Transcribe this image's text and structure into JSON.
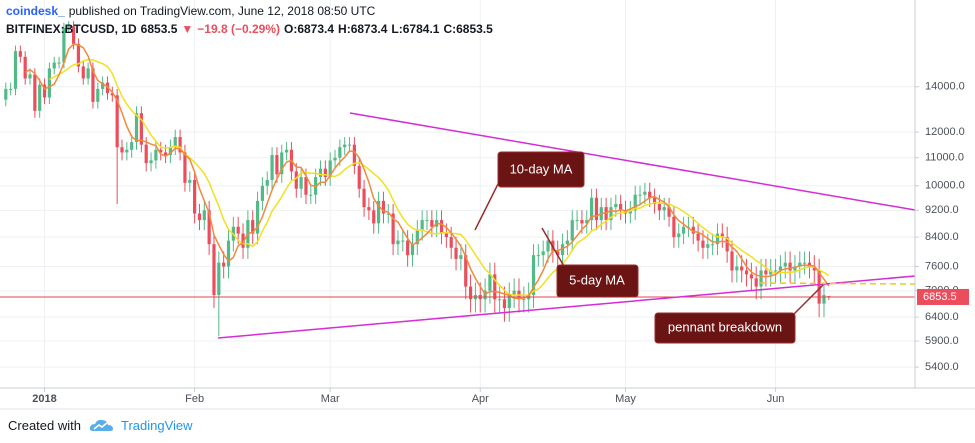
{
  "header": {
    "publisher": "coindesk_",
    "published": "published on TradingView.com, June 12, 2018 08:50 UTC",
    "symbol": "BITFINEX:BTCUSD, 1D",
    "last": "6853.5",
    "arrow": "▼",
    "change": "−19.8 (−0.29%)",
    "o": "O:6873.4",
    "h": "H:6873.4",
    "l": "L:6784.1",
    "c": "C:6853.5"
  },
  "chart_data": {
    "type": "candlestick",
    "open": [
      13400,
      13900,
      13900,
      15800,
      15500,
      14400,
      14600,
      12900,
      14100,
      13500,
      14900,
      15200,
      15200,
      17100,
      17200,
      16200,
      15000,
      14400,
      14900,
      13300,
      13900,
      14200,
      13700,
      13600,
      11400,
      11200,
      11300,
      11600,
      12800,
      11500,
      10800,
      10900,
      11300,
      11200,
      11100,
      11400,
      11800,
      11200,
      10100,
      10200,
      9100,
      8900,
      9200,
      8200,
      6900,
      7700,
      7600,
      8300,
      8700,
      8500,
      8100,
      8900,
      8500,
      9500,
      10000,
      10200,
      11100,
      10400,
      11200,
      11300,
      10500,
      9900,
      10300,
      9700,
      9700,
      10300,
      10600,
      10300,
      10900,
      11000,
      11400,
      11500,
      11500,
      10700,
      9900,
      9300,
      9200,
      8800,
      9500,
      9100,
      9100,
      8200,
      8300,
      8300,
      7900,
      8200,
      8600,
      8900,
      8900,
      8700,
      8900,
      8500,
      8400,
      8100,
      7800,
      7900,
      7100,
      6800,
      6900,
      6800,
      7000,
      7400,
      6800,
      6800,
      6600,
      6900,
      7000,
      6800,
      6800,
      6900,
      7900,
      7900,
      8000,
      8300,
      8000,
      7900,
      8200,
      8300,
      8900,
      8900,
      8800,
      8900,
      9600,
      8900,
      9300,
      8900,
      9300,
      9400,
      9200,
      9100,
      9200,
      9700,
      9700,
      9800,
      9600,
      9400,
      9200,
      9300,
      9000,
      8400,
      8500,
      8700,
      8700,
      8500,
      8300,
      8100,
      8200,
      8200,
      8500,
      8400,
      8000,
      7500,
      7600,
      7500,
      7400,
      7300,
      7100,
      7500,
      7400,
      7500,
      7500,
      7600,
      7700,
      7500,
      7600,
      7700,
      7700,
      7600,
      7500,
      6700,
      6873.4
    ],
    "high": [
      14200,
      14200,
      16100,
      16100,
      15800,
      14900,
      14900,
      14400,
      14400,
      15200,
      15500,
      15500,
      17400,
      17500,
      17500,
      16500,
      15300,
      15200,
      15200,
      14200,
      14500,
      14500,
      14000,
      13900,
      11700,
      11600,
      11900,
      13100,
      13100,
      11800,
      11200,
      11600,
      11600,
      11500,
      11700,
      12100,
      12100,
      11500,
      10500,
      10500,
      9400,
      9500,
      9500,
      8500,
      8000,
      8000,
      8600,
      9000,
      9000,
      8800,
      9200,
      9200,
      9800,
      10300,
      10500,
      11400,
      11400,
      11500,
      11600,
      11600,
      10800,
      10600,
      10600,
      10000,
      10600,
      10900,
      10900,
      11200,
      11300,
      11700,
      11800,
      11800,
      11800,
      11000,
      10200,
      9600,
      9500,
      9800,
      9800,
      9400,
      9400,
      8600,
      8600,
      8600,
      8500,
      8900,
      9200,
      9200,
      9200,
      9200,
      9200,
      8800,
      8700,
      8400,
      8200,
      8200,
      7400,
      7200,
      7200,
      7300,
      7700,
      7700,
      7100,
      7100,
      7200,
      7300,
      7300,
      7100,
      7200,
      8200,
      8200,
      8300,
      8600,
      8600,
      8300,
      8500,
      8600,
      9200,
      9200,
      9200,
      9200,
      9900,
      9900,
      9600,
      9600,
      9600,
      9700,
      9700,
      9500,
      9500,
      10000,
      10000,
      10100,
      10100,
      9900,
      9700,
      9600,
      9600,
      9300,
      8800,
      9000,
      9000,
      9000,
      8800,
      8600,
      8500,
      8500,
      8800,
      8800,
      8700,
      8300,
      7900,
      7900,
      7800,
      7700,
      7600,
      7800,
      7800,
      7800,
      7800,
      7900,
      8000,
      8000,
      7900,
      8000,
      8000,
      8000,
      7900,
      7800,
      7200,
      6873.4
    ],
    "low": [
      13100,
      13600,
      13600,
      15200,
      14100,
      14100,
      12600,
      12600,
      13200,
      13200,
      14600,
      14900,
      14900,
      16800,
      15900,
      14700,
      14100,
      14100,
      13000,
      13000,
      13600,
      13400,
      13300,
      9400,
      10900,
      10900,
      11000,
      11300,
      11200,
      10500,
      10500,
      10600,
      10900,
      10800,
      10800,
      11100,
      10900,
      9800,
      9800,
      8800,
      8600,
      8600,
      7900,
      6600,
      6000,
      7300,
      7300,
      8000,
      8200,
      7800,
      7800,
      8200,
      8200,
      9200,
      9700,
      9900,
      10100,
      10100,
      10900,
      10200,
      9600,
      9600,
      9400,
      9400,
      9400,
      10000,
      10000,
      10000,
      10600,
      10700,
      11100,
      11200,
      10400,
      9600,
      9000,
      8900,
      8500,
      8500,
      8800,
      8800,
      7900,
      7900,
      8000,
      7600,
      7600,
      7900,
      8300,
      8600,
      8400,
      8400,
      8200,
      8100,
      7800,
      7500,
      7500,
      6800,
      6500,
      6500,
      6500,
      6500,
      6700,
      6500,
      6500,
      6300,
      6300,
      6600,
      6500,
      6500,
      6500,
      6600,
      7600,
      7600,
      7700,
      7700,
      7600,
      7600,
      7900,
      8000,
      8600,
      8500,
      8500,
      8600,
      8600,
      8600,
      8600,
      8600,
      9000,
      8900,
      8800,
      8800,
      8900,
      9400,
      9400,
      9300,
      9100,
      8900,
      8900,
      8700,
      8100,
      8100,
      8200,
      8400,
      8200,
      8000,
      7800,
      7800,
      7900,
      7900,
      8100,
      7700,
      7200,
      7200,
      7200,
      7100,
      7000,
      6800,
      6800,
      7100,
      7100,
      7200,
      7200,
      7300,
      7200,
      7200,
      7300,
      7400,
      7300,
      7200,
      6400,
      6400,
      6784.1
    ],
    "close": [
      13900,
      13900,
      15800,
      15500,
      14400,
      14600,
      12900,
      14100,
      13500,
      14900,
      15200,
      15200,
      17100,
      17200,
      16200,
      15000,
      14400,
      14900,
      13300,
      13900,
      14200,
      13700,
      13600,
      11400,
      11200,
      11300,
      11600,
      12800,
      11500,
      10800,
      10900,
      11300,
      11200,
      11100,
      11400,
      11800,
      11200,
      10100,
      10200,
      9100,
      8900,
      9200,
      8200,
      6900,
      7700,
      7600,
      8300,
      8700,
      8500,
      8100,
      8900,
      8500,
      9500,
      10000,
      10200,
      11100,
      10400,
      11200,
      11300,
      10500,
      9900,
      10300,
      9700,
      9700,
      10300,
      10600,
      10300,
      10900,
      11000,
      11400,
      11500,
      11500,
      10700,
      9900,
      9300,
      9200,
      8800,
      9500,
      9100,
      9100,
      8200,
      8300,
      8300,
      7900,
      8200,
      8600,
      8900,
      8900,
      8700,
      8900,
      8500,
      8400,
      8100,
      7800,
      7900,
      7100,
      6800,
      6900,
      6800,
      7000,
      7400,
      6800,
      6800,
      6600,
      6900,
      7000,
      6800,
      6800,
      6900,
      7900,
      7900,
      8000,
      8300,
      8000,
      7900,
      8200,
      8300,
      8900,
      8900,
      8800,
      8900,
      9600,
      8900,
      9300,
      8900,
      9300,
      9400,
      9200,
      9100,
      9200,
      9700,
      9700,
      9800,
      9600,
      9400,
      9200,
      9300,
      9000,
      8400,
      8500,
      8700,
      8700,
      8500,
      8300,
      8100,
      8200,
      8200,
      8500,
      8400,
      8000,
      7500,
      7600,
      7500,
      7400,
      7300,
      7100,
      7500,
      7400,
      7500,
      7500,
      7600,
      7700,
      7500,
      7600,
      7700,
      7700,
      7600,
      7500,
      6700,
      6900,
      6853.5
    ],
    "xlim": [
      -1.2,
      187.8
    ],
    "xticks": [
      {
        "value": 8,
        "label": "2018"
      },
      {
        "value": 39,
        "label": "Feb"
      },
      {
        "value": 67,
        "label": "Mar"
      },
      {
        "value": 98,
        "label": "Apr"
      },
      {
        "value": 128,
        "label": "May"
      },
      {
        "value": 159,
        "label": "Jun"
      }
    ],
    "ylim": [
      5030,
      18800
    ],
    "log_scale": true,
    "yticks": [
      {
        "value": 14000,
        "label": "14000.0"
      },
      {
        "value": 12000,
        "label": "12000.0"
      },
      {
        "value": 11000,
        "label": "11000.0"
      },
      {
        "value": 10000,
        "label": "10000.0"
      },
      {
        "value": 9200,
        "label": "9200.0"
      },
      {
        "value": 8400,
        "label": "8400.0"
      },
      {
        "value": 7600,
        "label": "7600.0"
      },
      {
        "value": 7000,
        "label": "7000.0"
      },
      {
        "value": 6400,
        "label": "6400.0"
      },
      {
        "value": 5900,
        "label": "5900.0"
      },
      {
        "value": 5400,
        "label": "5400.0"
      }
    ],
    "grid": true,
    "up_color": "#53b987",
    "down_color": "#eb4d5c",
    "last_label": "6853.5",
    "annotations": [
      {
        "text": "10-day MA",
        "period": 10,
        "color": "#f2e01f"
      },
      {
        "text": "5-day MA",
        "period": 5,
        "color": "#f08a3c"
      },
      {
        "text": "pennant breakdown"
      }
    ]
  },
  "footer": {
    "created": "Created with",
    "brand": "TradingView"
  }
}
